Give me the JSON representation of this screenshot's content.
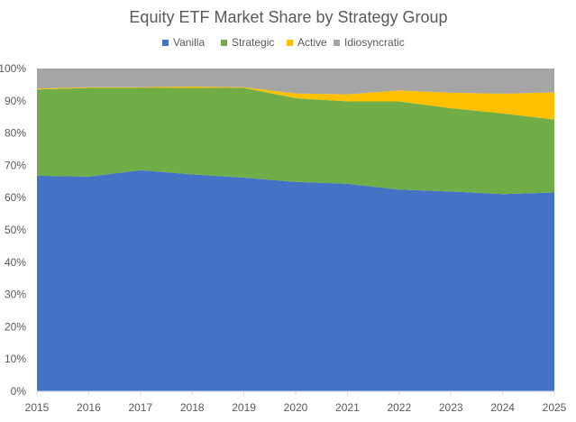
{
  "chart_data": {
    "type": "area",
    "stacked": true,
    "title": "Equity ETF Market Share by Strategy Group",
    "xlabel": "",
    "ylabel": "",
    "x": [
      "2015",
      "2016",
      "2017",
      "2018",
      "2019",
      "2020",
      "2021",
      "2022",
      "2023",
      "2024",
      "2025"
    ],
    "ylim": [
      0,
      100
    ],
    "yticks": [
      "0%",
      "10%",
      "20%",
      "30%",
      "40%",
      "50%",
      "60%",
      "70%",
      "80%",
      "90%",
      "100%"
    ],
    "grid": false,
    "legend": "top",
    "series": [
      {
        "name": "Vanilla",
        "color": "#4472C4",
        "values": [
          66.8,
          66.5,
          68.5,
          67.2,
          66.2,
          64.9,
          64.3,
          62.5,
          61.9,
          61.1,
          61.6
        ]
      },
      {
        "name": "Strategic",
        "color": "#70AD47",
        "values": [
          26.7,
          27.5,
          25.5,
          26.8,
          27.8,
          25.9,
          25.5,
          27.3,
          25.8,
          25.0,
          22.6
        ]
      },
      {
        "name": "Active",
        "color": "#FFC000",
        "values": [
          0.3,
          0.2,
          0.2,
          0.4,
          0.2,
          1.5,
          2.2,
          3.4,
          4.8,
          6.1,
          8.4
        ]
      },
      {
        "name": "Idiosyncratic",
        "color": "#A5A5A5",
        "values": [
          6.2,
          5.8,
          5.8,
          5.6,
          5.8,
          7.7,
          8.0,
          6.8,
          7.5,
          7.8,
          7.4
        ]
      }
    ]
  }
}
